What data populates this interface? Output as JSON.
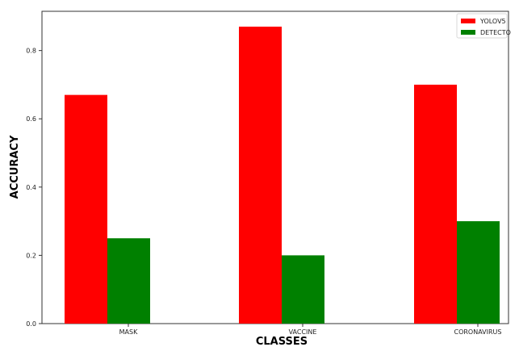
{
  "chart_data": {
    "type": "bar",
    "title": "",
    "xlabel": "CLASSES",
    "ylabel": "ACCURACY",
    "categories": [
      "MASK",
      "VACCINE",
      "CORONAVIRUS"
    ],
    "series": [
      {
        "name": "YOLOV5",
        "values": [
          0.67,
          0.87,
          0.7
        ],
        "color": "#ff0000"
      },
      {
        "name": "DETECTO",
        "values": [
          0.25,
          0.2,
          0.3
        ],
        "color": "#008000"
      }
    ],
    "ylim": [
      0,
      0.915
    ],
    "yticks": [
      "0.0",
      "0.2",
      "0.4",
      "0.6",
      "0.8"
    ],
    "grid": false,
    "legend_position": "top-right"
  }
}
